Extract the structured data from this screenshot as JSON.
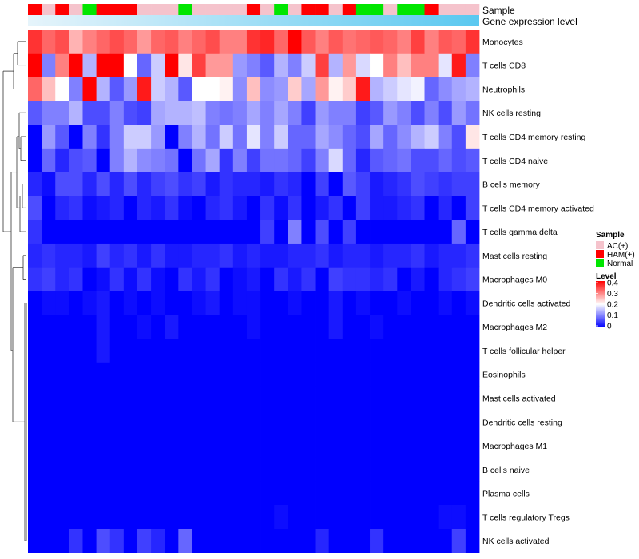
{
  "chart_data": {
    "type": "heatmap",
    "title": "",
    "annotation_labels": {
      "sample": "Sample",
      "expression": "Gene expression level"
    },
    "row_labels": [
      "Monocytes",
      "T cells CD8",
      "Neutrophils",
      "NK cells resting",
      "T cells CD4 memory resting",
      "T cells CD4 naive",
      "B cells memory",
      "T cells CD4 memory activated",
      "T cells gamma delta",
      "Mast cells resting",
      "Macrophages M0",
      "Dendritic cells activated",
      "Macrophages M2",
      "T cells follicular helper",
      "Eosinophils",
      "Mast cells activated",
      "Dendritic cells resting",
      "Macrophages M1",
      "B cells naive",
      "Plasma cells",
      "T cells regulatory  Tregs",
      "NK cells activated"
    ],
    "sample_groups": [
      "HAM(+)",
      "AC(+)",
      "HAM(+)",
      "AC(+)",
      "Normal",
      "HAM(+)",
      "HAM(+)",
      "HAM(+)",
      "AC(+)",
      "AC(+)",
      "AC(+)",
      "Normal",
      "AC(+)",
      "AC(+)",
      "AC(+)",
      "AC(+)",
      "HAM(+)",
      "AC(+)",
      "Normal",
      "AC(+)",
      "HAM(+)",
      "HAM(+)",
      "AC(+)",
      "HAM(+)",
      "Normal",
      "Normal",
      "AC(+)",
      "Normal",
      "Normal",
      "HAM(+)",
      "AC(+)",
      "AC(+)",
      "AC(+)"
    ],
    "expression_gradient": [
      "#e6f4fb",
      "#5ac8f0"
    ],
    "legend_sample": {
      "title": "Sample",
      "entries": [
        {
          "label": "AC(+)",
          "color": "#f5c3cc"
        },
        {
          "label": "HAM(+)",
          "color": "#ff0000"
        },
        {
          "label": "Normal",
          "color": "#00e600"
        }
      ]
    },
    "legend_level": {
      "title": "Level",
      "ticks": [
        "0.4",
        "0.3",
        "0.2",
        "0.1",
        "0"
      ],
      "min": 0,
      "max": 0.4,
      "colors": [
        "#0000ff",
        "#ffffff",
        "#ff0000"
      ]
    },
    "values": [
      [
        0.36,
        0.32,
        0.34,
        0.26,
        0.3,
        0.32,
        0.34,
        0.32,
        0.28,
        0.32,
        0.33,
        0.3,
        0.32,
        0.34,
        0.3,
        0.3,
        0.36,
        0.37,
        0.32,
        0.4,
        0.33,
        0.3,
        0.33,
        0.31,
        0.32,
        0.33,
        0.32,
        0.3,
        0.35,
        0.3,
        0.33,
        0.32,
        0.36
      ],
      [
        0.4,
        0.1,
        0.3,
        0.4,
        0.14,
        0.4,
        0.4,
        0.2,
        0.08,
        0.16,
        0.4,
        0.22,
        0.35,
        0.28,
        0.28,
        0.12,
        0.1,
        0.07,
        0.14,
        0.1,
        0.16,
        0.35,
        0.14,
        0.28,
        0.17,
        0.2,
        0.3,
        0.25,
        0.3,
        0.3,
        0.18,
        0.38,
        0.1
      ],
      [
        0.32,
        0.25,
        0.2,
        0.1,
        0.4,
        0.14,
        0.07,
        0.12,
        0.38,
        0.16,
        0.14,
        0.07,
        0.2,
        0.2,
        0.21,
        0.11,
        0.25,
        0.11,
        0.12,
        0.24,
        0.13,
        0.28,
        0.21,
        0.24,
        0.38,
        0.14,
        0.16,
        0.18,
        0.19,
        0.08,
        0.11,
        0.13,
        0.14
      ],
      [
        0.07,
        0.1,
        0.1,
        0.14,
        0.06,
        0.06,
        0.1,
        0.06,
        0.05,
        0.13,
        0.14,
        0.14,
        0.15,
        0.1,
        0.09,
        0.1,
        0.13,
        0.1,
        0.13,
        0.1,
        0.05,
        0.12,
        0.1,
        0.1,
        0.05,
        0.07,
        0.12,
        0.1,
        0.06,
        0.1,
        0.06,
        0.12,
        0.09
      ],
      [
        0.0,
        0.12,
        0.07,
        0.0,
        0.1,
        0.04,
        0.1,
        0.16,
        0.16,
        0.12,
        0.0,
        0.1,
        0.14,
        0.09,
        0.16,
        0.09,
        0.18,
        0.1,
        0.16,
        0.08,
        0.08,
        0.13,
        0.11,
        0.08,
        0.06,
        0.13,
        0.08,
        0.11,
        0.14,
        0.16,
        0.1,
        0.06,
        0.22
      ],
      [
        0.0,
        0.08,
        0.03,
        0.06,
        0.07,
        0.0,
        0.1,
        0.14,
        0.11,
        0.1,
        0.09,
        0.0,
        0.09,
        0.13,
        0.04,
        0.1,
        0.05,
        0.09,
        0.09,
        0.08,
        0.05,
        0.1,
        0.17,
        0.08,
        0.03,
        0.07,
        0.08,
        0.09,
        0.06,
        0.06,
        0.08,
        0.06,
        0.07
      ],
      [
        0.03,
        0.01,
        0.06,
        0.06,
        0.03,
        0.06,
        0.03,
        0.06,
        0.03,
        0.05,
        0.06,
        0.04,
        0.05,
        0.02,
        0.04,
        0.03,
        0.03,
        0.02,
        0.04,
        0.03,
        0.0,
        0.05,
        0.0,
        0.07,
        0.05,
        0.02,
        0.03,
        0.04,
        0.06,
        0.05,
        0.04,
        0.05,
        0.05
      ],
      [
        0.06,
        0.0,
        0.03,
        0.04,
        0.01,
        0.02,
        0.03,
        0.0,
        0.03,
        0.02,
        0.04,
        0.01,
        0.0,
        0.03,
        0.04,
        0.02,
        0.0,
        0.04,
        0.01,
        0.04,
        0.0,
        0.02,
        0.04,
        0.0,
        0.05,
        0.02,
        0.02,
        0.03,
        0.04,
        0.0,
        0.03,
        0.0,
        0.05
      ],
      [
        0.04,
        0.0,
        0.0,
        0.0,
        0.0,
        0.0,
        0.0,
        0.0,
        0.0,
        0.0,
        0.0,
        0.0,
        0.0,
        0.0,
        0.0,
        0.0,
        0.0,
        0.05,
        0.0,
        0.1,
        0.0,
        0.06,
        0.0,
        0.05,
        0.0,
        0.0,
        0.0,
        0.0,
        0.0,
        0.0,
        0.0,
        0.08,
        0.0
      ],
      [
        0.03,
        0.04,
        0.03,
        0.03,
        0.02,
        0.05,
        0.03,
        0.04,
        0.02,
        0.04,
        0.02,
        0.02,
        0.03,
        0.03,
        0.04,
        0.02,
        0.03,
        0.02,
        0.02,
        0.03,
        0.03,
        0.04,
        0.02,
        0.03,
        0.03,
        0.02,
        0.03,
        0.03,
        0.04,
        0.02,
        0.03,
        0.03,
        0.04
      ],
      [
        0.04,
        0.05,
        0.03,
        0.04,
        0.0,
        0.01,
        0.04,
        0.01,
        0.04,
        0.01,
        0.0,
        0.04,
        0.02,
        0.04,
        0.0,
        0.01,
        0.02,
        0.0,
        0.04,
        0.02,
        0.04,
        0.0,
        0.05,
        0.04,
        0.04,
        0.03,
        0.04,
        0.0,
        0.02,
        0.0,
        0.03,
        0.04,
        0.05
      ],
      [
        0.0,
        0.01,
        0.01,
        0.0,
        0.01,
        0.02,
        0.0,
        0.01,
        0.0,
        0.01,
        0.0,
        0.0,
        0.01,
        0.02,
        0.0,
        0.01,
        0.01,
        0.0,
        0.0,
        0.01,
        0.0,
        0.0,
        0.02,
        0.0,
        0.01,
        0.0,
        0.0,
        0.01,
        0.0,
        0.0,
        0.01,
        0.0,
        0.01
      ],
      [
        0.0,
        0.0,
        0.0,
        0.0,
        0.0,
        0.02,
        0.0,
        0.0,
        0.01,
        0.0,
        0.02,
        0.0,
        0.0,
        0.0,
        0.0,
        0.0,
        0.01,
        0.0,
        0.0,
        0.0,
        0.0,
        0.0,
        0.02,
        0.0,
        0.0,
        0.01,
        0.0,
        0.0,
        0.0,
        0.0,
        0.0,
        0.0,
        0.0
      ],
      [
        0.0,
        0.0,
        0.0,
        0.0,
        0.0,
        0.02,
        0.0,
        0.0,
        0.0,
        0.0,
        0.0,
        0.0,
        0.0,
        0.0,
        0.0,
        0.0,
        0.0,
        0.0,
        0.0,
        0.0,
        0.0,
        0.0,
        0.0,
        0.0,
        0.0,
        0.0,
        0.0,
        0.0,
        0.0,
        0.0,
        0.0,
        0.0,
        0.0
      ],
      [
        0.0,
        0.0,
        0.0,
        0.0,
        0.0,
        0.0,
        0.0,
        0.0,
        0.0,
        0.0,
        0.0,
        0.0,
        0.0,
        0.0,
        0.0,
        0.0,
        0.0,
        0.0,
        0.0,
        0.0,
        0.0,
        0.0,
        0.0,
        0.0,
        0.0,
        0.0,
        0.0,
        0.0,
        0.0,
        0.0,
        0.0,
        0.0,
        0.0
      ],
      [
        0.0,
        0.0,
        0.0,
        0.0,
        0.0,
        0.0,
        0.0,
        0.0,
        0.0,
        0.0,
        0.0,
        0.0,
        0.0,
        0.0,
        0.0,
        0.0,
        0.0,
        0.0,
        0.0,
        0.0,
        0.0,
        0.0,
        0.0,
        0.0,
        0.0,
        0.0,
        0.0,
        0.0,
        0.0,
        0.0,
        0.0,
        0.0,
        0.0
      ],
      [
        0.0,
        0.0,
        0.0,
        0.0,
        0.0,
        0.0,
        0.0,
        0.0,
        0.0,
        0.0,
        0.0,
        0.0,
        0.0,
        0.0,
        0.0,
        0.0,
        0.0,
        0.0,
        0.0,
        0.0,
        0.0,
        0.0,
        0.0,
        0.0,
        0.0,
        0.0,
        0.0,
        0.0,
        0.0,
        0.0,
        0.0,
        0.0,
        0.0
      ],
      [
        0.0,
        0.0,
        0.0,
        0.0,
        0.0,
        0.0,
        0.0,
        0.0,
        0.0,
        0.0,
        0.0,
        0.0,
        0.0,
        0.0,
        0.0,
        0.0,
        0.0,
        0.0,
        0.0,
        0.0,
        0.0,
        0.0,
        0.0,
        0.0,
        0.0,
        0.0,
        0.0,
        0.0,
        0.0,
        0.0,
        0.0,
        0.0,
        0.0
      ],
      [
        0.0,
        0.0,
        0.0,
        0.0,
        0.0,
        0.0,
        0.0,
        0.0,
        0.0,
        0.0,
        0.0,
        0.0,
        0.0,
        0.0,
        0.0,
        0.0,
        0.0,
        0.0,
        0.0,
        0.0,
        0.0,
        0.0,
        0.0,
        0.0,
        0.0,
        0.0,
        0.0,
        0.0,
        0.0,
        0.0,
        0.0,
        0.0,
        0.0
      ],
      [
        0.0,
        0.0,
        0.0,
        0.0,
        0.0,
        0.0,
        0.0,
        0.0,
        0.0,
        0.0,
        0.0,
        0.0,
        0.0,
        0.0,
        0.0,
        0.0,
        0.0,
        0.0,
        0.0,
        0.0,
        0.0,
        0.0,
        0.0,
        0.0,
        0.0,
        0.0,
        0.0,
        0.0,
        0.0,
        0.0,
        0.0,
        0.0,
        0.0
      ],
      [
        0.0,
        0.0,
        0.0,
        0.0,
        0.0,
        0.0,
        0.0,
        0.0,
        0.0,
        0.0,
        0.0,
        0.0,
        0.0,
        0.0,
        0.0,
        0.0,
        0.0,
        0.0,
        0.01,
        0.0,
        0.0,
        0.0,
        0.0,
        0.0,
        0.0,
        0.0,
        0.0,
        0.0,
        0.0,
        0.0,
        0.01,
        0.01,
        0.0
      ],
      [
        0.0,
        0.0,
        0.0,
        0.04,
        0.0,
        0.06,
        0.04,
        0.0,
        0.05,
        0.03,
        0.0,
        0.08,
        0.0,
        0.0,
        0.0,
        0.0,
        0.0,
        0.0,
        0.0,
        0.0,
        0.0,
        0.03,
        0.0,
        0.0,
        0.0,
        0.04,
        0.0,
        0.0,
        0.0,
        0.0,
        0.0,
        0.05,
        0.0
      ]
    ]
  }
}
